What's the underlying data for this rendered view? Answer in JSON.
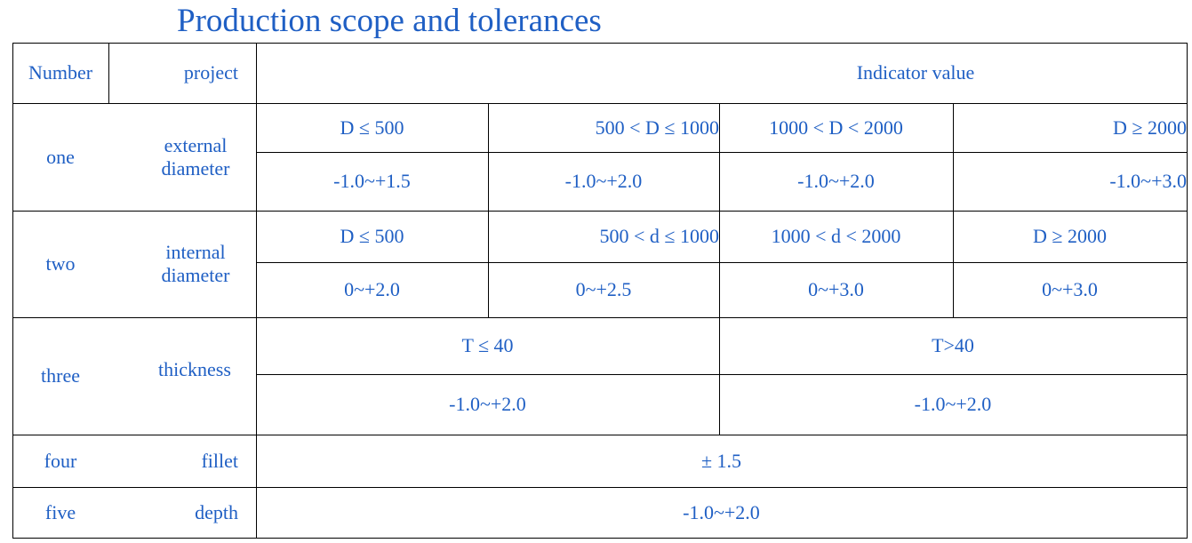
{
  "title": "Production scope and tolerances",
  "header": {
    "number": "Number",
    "project": "project",
    "indicator": "Indicator value"
  },
  "rows": [
    {
      "number": "one",
      "project": "external diameter",
      "ranges": [
        "D ≤ 500",
        "500 < D ≤ 1000",
        "1000 < D < 2000",
        "D ≥ 2000"
      ],
      "tolerances": [
        "-1.0~+1.5",
        "-1.0~+2.0",
        "-1.0~+2.0",
        "-1.0~+3.0"
      ]
    },
    {
      "number": "two",
      "project": "internal diameter",
      "ranges": [
        "D ≤ 500",
        "500 < d ≤ 1000",
        "1000 < d < 2000",
        "D ≥ 2000"
      ],
      "tolerances": [
        "0~+2.0",
        "0~+2.5",
        "0~+3.0",
        "0~+3.0"
      ]
    },
    {
      "number": "three",
      "project": "thickness",
      "ranges": [
        "T ≤ 40",
        "T>40"
      ],
      "tolerances": [
        "-1.0~+2.0",
        "-1.0~+2.0"
      ]
    },
    {
      "number": "four",
      "project": "fillet",
      "value": "± 1.5"
    },
    {
      "number": "five",
      "project": "depth",
      "value": "-1.0~+2.0"
    }
  ]
}
